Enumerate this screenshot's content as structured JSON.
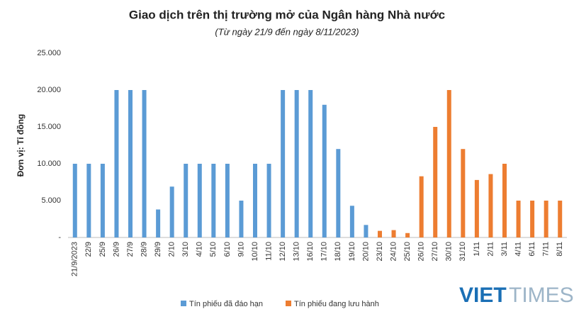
{
  "chart_data": {
    "type": "bar",
    "title": "Giao dịch trên thị trường mở của Ngân hàng Nhà nước",
    "subtitle": "(Từ ngày 21/9 đến ngày 8/11/2023)",
    "y_label": "Đơn vị: Tỉ đồng",
    "categories": [
      "21/9/2023",
      "22/9",
      "25/9",
      "26/9",
      "27/9",
      "28/9",
      "29/9",
      "2/10",
      "3/10",
      "4/10",
      "5/10",
      "6/10",
      "9/10",
      "10/10",
      "11/10",
      "12/10",
      "13/10",
      "16/10",
      "17/10",
      "18/10",
      "19/10",
      "20/10",
      "23/10",
      "24/10",
      "25/10",
      "26/10",
      "27/10",
      "30/10",
      "31/10",
      "1/11",
      "2/11",
      "3/11",
      "4/11",
      "6/11",
      "7/11",
      "8/11"
    ],
    "series": [
      {
        "name": "Tín phiếu đã đáo hạn",
        "color": "#5b9bd5",
        "values": [
          10000,
          10000,
          10000,
          20000,
          20000,
          20000,
          3800,
          6900,
          10000,
          10000,
          10000,
          10000,
          5000,
          10000,
          10000,
          20000,
          20000,
          20000,
          18000,
          12000,
          4300,
          1700,
          null,
          null,
          null,
          null,
          null,
          null,
          null,
          null,
          null,
          null,
          null,
          null,
          null,
          null
        ]
      },
      {
        "name": "Tín phiếu đang lưu hành",
        "color": "#ed7d31",
        "values": [
          null,
          null,
          null,
          null,
          null,
          null,
          null,
          null,
          null,
          null,
          null,
          null,
          null,
          null,
          null,
          null,
          null,
          null,
          null,
          null,
          null,
          null,
          900,
          1000,
          600,
          8300,
          15000,
          20000,
          12000,
          7800,
          8600,
          10000,
          5000,
          5000,
          5000,
          5000
        ]
      }
    ],
    "ylim": [
      0,
      25000
    ],
    "yticks": [
      {
        "value": 0,
        "label": "-"
      },
      {
        "value": 5000,
        "label": "5.000"
      },
      {
        "value": 10000,
        "label": "10.000"
      },
      {
        "value": 15000,
        "label": "15.000"
      },
      {
        "value": 20000,
        "label": "20.000"
      },
      {
        "value": 25000,
        "label": "25.000"
      }
    ],
    "legend": "bottom",
    "watermark": {
      "left": "VIET",
      "right": "TIMES"
    }
  }
}
